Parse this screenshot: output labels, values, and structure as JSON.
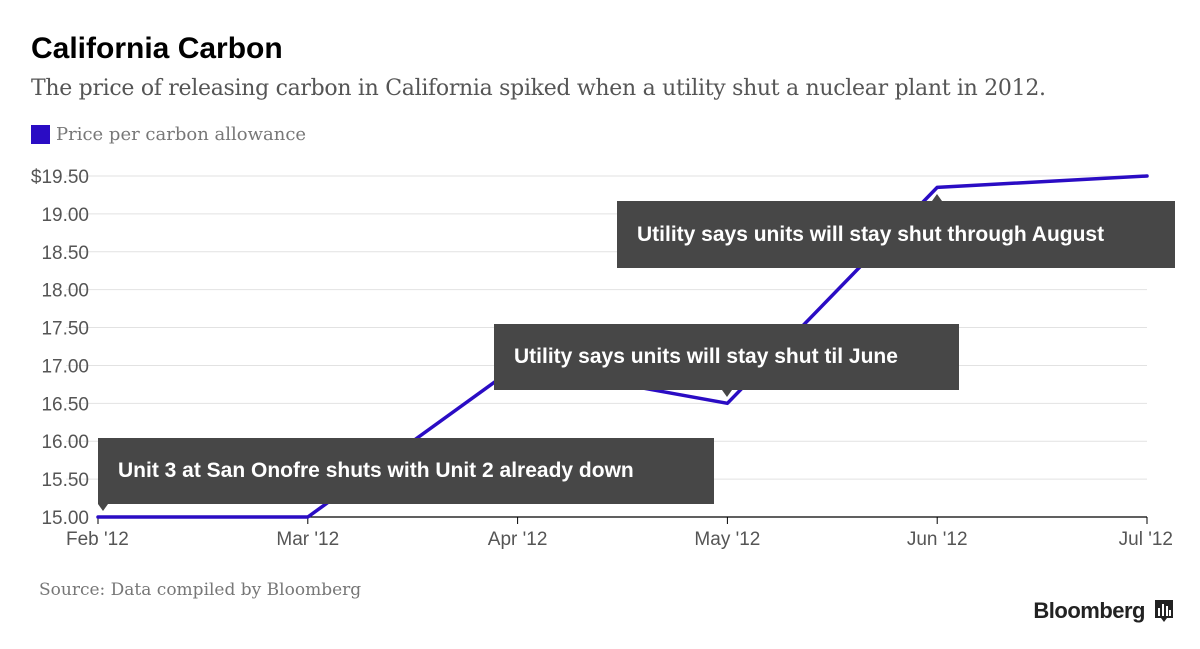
{
  "header": {
    "title": "California Carbon",
    "subtitle": "The price of releasing carbon in California spiked when a utility shut a nuclear plant in 2012."
  },
  "legend": {
    "label": "Price per carbon allowance",
    "color": "#2a0cc4"
  },
  "footer": {
    "source": "Source: Data compiled by Bloomberg",
    "brand": "Bloomberg"
  },
  "colors": {
    "line": "#2a0cc4",
    "grid": "#e2e2e2",
    "axis": "#000000",
    "tick_text": "#555555",
    "annotation_bg": "#474747"
  },
  "chart_data": {
    "type": "line",
    "title": "California Carbon",
    "x": [
      "Feb '12",
      "Mar '12",
      "Apr '12",
      "May '12",
      "Jun '12",
      "Jul '12"
    ],
    "series": [
      {
        "name": "Price per carbon allowance",
        "values": [
          15.0,
          15.0,
          17.0,
          16.5,
          19.35,
          19.5
        ]
      }
    ],
    "ylim": [
      15.0,
      19.5
    ],
    "yticks": [
      15.0,
      15.5,
      16.0,
      16.5,
      17.0,
      17.5,
      18.0,
      18.5,
      19.0,
      19.5
    ],
    "ytick_labels": [
      "15.00",
      "15.50",
      "16.00",
      "16.50",
      "17.00",
      "17.50",
      "18.00",
      "18.50",
      "19.00",
      "$19.50"
    ],
    "grid": true,
    "annotations": [
      {
        "text": "Unit 3 at San Onofre shuts with Unit 2 already down",
        "x": "Feb '12",
        "y": 15.0
      },
      {
        "text": "Utility says units will stay shut til June",
        "x": "May '12",
        "y": 16.5
      },
      {
        "text": "Utility says units will stay shut through August",
        "x": "Jun '12",
        "y": 19.35
      }
    ]
  }
}
